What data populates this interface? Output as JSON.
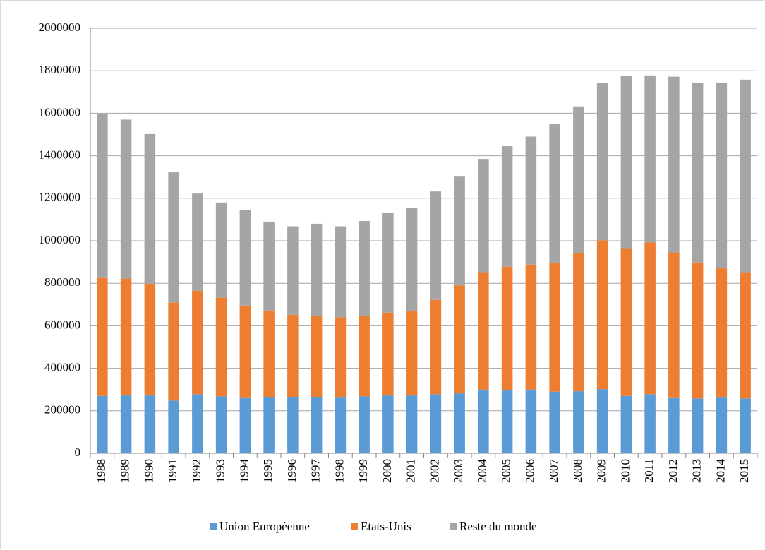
{
  "chart_data": {
    "type": "stacked-bar",
    "categories": [
      "1988",
      "1989",
      "1990",
      "1991",
      "1992",
      "1993",
      "1994",
      "1995",
      "1996",
      "1997",
      "1998",
      "1999",
      "2000",
      "2001",
      "2002",
      "2003",
      "2004",
      "2005",
      "2006",
      "2007",
      "2008",
      "2009",
      "2010",
      "2011",
      "2012",
      "2013",
      "2014",
      "2015"
    ],
    "series": [
      {
        "name": "Union Européenne",
        "color": "#5b9bd5",
        "values": [
          270000,
          272000,
          272000,
          248000,
          278000,
          268000,
          260000,
          265000,
          265000,
          265000,
          262000,
          268000,
          272000,
          272000,
          278000,
          282000,
          300000,
          298000,
          300000,
          290000,
          292000,
          302000,
          270000,
          278000,
          260000,
          258000,
          262000,
          258000
        ]
      },
      {
        "name": "Etats-Unis",
        "color": "#ed7d31",
        "values": [
          555000,
          550000,
          526000,
          462000,
          487000,
          464000,
          435000,
          407000,
          387000,
          383000,
          378000,
          380000,
          390000,
          396000,
          444000,
          508000,
          552000,
          580000,
          588000,
          605000,
          650000,
          700000,
          695000,
          714000,
          685000,
          640000,
          608000,
          594000
        ]
      },
      {
        "name": "Reste du monde",
        "color": "#a5a5a5",
        "values": [
          770000,
          748000,
          704000,
          612000,
          457000,
          448000,
          450000,
          418000,
          416000,
          432000,
          428000,
          445000,
          468000,
          487000,
          510000,
          515000,
          533000,
          567000,
          602000,
          653000,
          690000,
          740000,
          810000,
          786000,
          827000,
          844000,
          872000,
          906000
        ]
      }
    ],
    "ylim": [
      0,
      2000000
    ],
    "yticks": [
      0,
      200000,
      400000,
      600000,
      800000,
      1000000,
      1200000,
      1400000,
      1600000,
      1800000,
      2000000
    ],
    "grid": true,
    "legend": "bottom"
  }
}
